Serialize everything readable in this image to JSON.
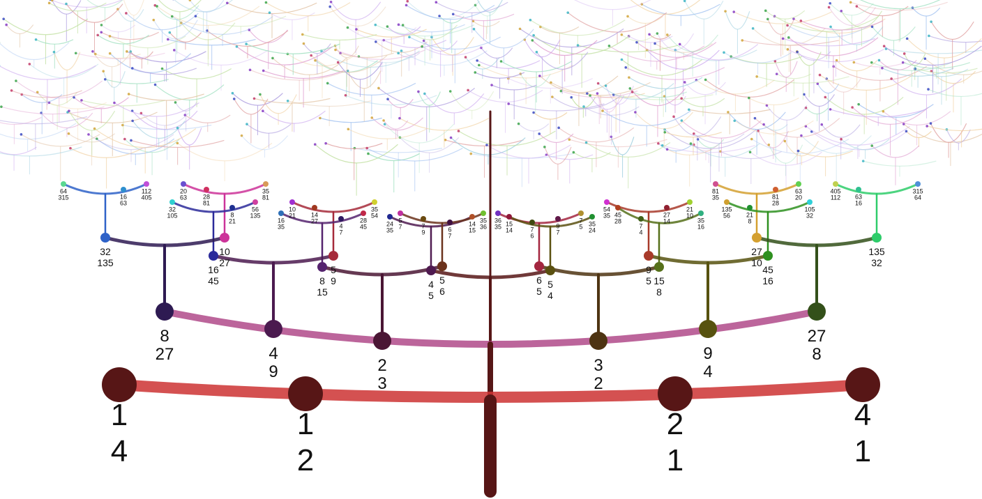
{
  "diagram": {
    "trunk_color": "#571616",
    "levels": [
      {
        "nodes": [
          {
            "num": "1",
            "den": "4",
            "color": "#571616"
          },
          {
            "num": "1",
            "den": "2",
            "color": "#571616"
          },
          {
            "num": "2",
            "den": "1",
            "color": "#571616"
          },
          {
            "num": "4",
            "den": "1",
            "color": "#571616"
          }
        ],
        "arc_color": "#cc3333"
      },
      {
        "nodes": [
          {
            "num": "8",
            "den": "27",
            "color": "#2e1a52"
          },
          {
            "num": "4",
            "den": "9",
            "color": "#4b1a4f"
          },
          {
            "num": "2",
            "den": "3",
            "color": "#4a1634"
          },
          {
            "num": "3",
            "den": "2",
            "color": "#4e3412"
          },
          {
            "num": "9",
            "den": "4",
            "color": "#57520f"
          },
          {
            "num": "27",
            "den": "8",
            "color": "#33501a"
          }
        ]
      },
      {
        "nodes": [
          {
            "num": "32",
            "den": "135",
            "color": "#2e62c8"
          },
          {
            "num": "10",
            "den": "27",
            "color": "#cc3399"
          },
          {
            "num": "16",
            "den": "45",
            "color": "#2b2a9a"
          },
          {
            "num": "5",
            "den": "9",
            "color": "#a62a3a"
          },
          {
            "num": "8",
            "den": "15",
            "color": "#55236e"
          },
          {
            "num": "4",
            "den": "5",
            "color": "#4f1a50"
          },
          {
            "num": "5",
            "den": "6",
            "color": "#6b321c"
          },
          {
            "num": "6",
            "den": "5",
            "color": "#a3263f"
          },
          {
            "num": "5",
            "den": "4",
            "color": "#5a5010"
          },
          {
            "num": "9",
            "den": "5",
            "color": "#a83a2a"
          },
          {
            "num": "15",
            "den": "8",
            "color": "#56701a"
          },
          {
            "num": "27",
            "den": "10",
            "color": "#d4a030"
          },
          {
            "num": "45",
            "den": "16",
            "color": "#2e9020"
          },
          {
            "num": "135",
            "den": "32",
            "color": "#2ecc6a"
          }
        ]
      },
      {
        "nodes": [
          {
            "num": "64",
            "den": "315",
            "color": "#5ad890"
          },
          {
            "num": "16",
            "den": "63",
            "color": "#2e8fcf"
          },
          {
            "num": "112",
            "den": "405",
            "color": "#c050d8"
          },
          {
            "num": "20",
            "den": "63",
            "color": "#6a50d0"
          },
          {
            "num": "28",
            "den": "81",
            "color": "#d03060"
          },
          {
            "num": "35",
            "den": "81",
            "color": "#d89a58"
          },
          {
            "num": "32",
            "den": "105",
            "color": "#30d0d0"
          },
          {
            "num": "8",
            "den": "21",
            "color": "#1e3090"
          },
          {
            "num": "56",
            "den": "135",
            "color": "#d040a0"
          },
          {
            "num": "10",
            "den": "21",
            "color": "#a030d0"
          },
          {
            "num": "14",
            "den": "27",
            "color": "#a03820"
          },
          {
            "num": "35",
            "den": "54",
            "color": "#d0d030"
          },
          {
            "num": "16",
            "den": "35",
            "color": "#2e70b8"
          },
          {
            "num": "4",
            "den": "7",
            "color": "#301860"
          },
          {
            "num": "28",
            "den": "45",
            "color": "#c02848"
          },
          {
            "num": "24",
            "den": "35",
            "color": "#202890"
          },
          {
            "num": "5",
            "den": "7",
            "color": "#c030a0"
          },
          {
            "num": "7",
            "den": "9",
            "color": "#6a4a10"
          },
          {
            "num": "6",
            "den": "7",
            "color": "#401040"
          },
          {
            "num": "14",
            "den": "15",
            "color": "#b05028"
          },
          {
            "num": "35",
            "den": "36",
            "color": "#70c030"
          },
          {
            "num": "36",
            "den": "35",
            "color": "#7030c0"
          },
          {
            "num": "15",
            "den": "14",
            "color": "#901838"
          },
          {
            "num": "7",
            "den": "6",
            "color": "#404810"
          },
          {
            "num": "9",
            "den": "7",
            "color": "#601848"
          },
          {
            "num": "7",
            "den": "5",
            "color": "#b09030"
          },
          {
            "num": "35",
            "den": "24",
            "color": "#209030"
          },
          {
            "num": "54",
            "den": "35",
            "color": "#d030d0"
          },
          {
            "num": "45",
            "den": "28",
            "color": "#b04020"
          },
          {
            "num": "7",
            "den": "4",
            "color": "#406018"
          },
          {
            "num": "27",
            "den": "14",
            "color": "#902030"
          },
          {
            "num": "21",
            "den": "10",
            "color": "#a0d030"
          },
          {
            "num": "35",
            "den": "16",
            "color": "#30b080"
          },
          {
            "num": "81",
            "den": "35",
            "color": "#d05090"
          },
          {
            "num": "135",
            "den": "56",
            "color": "#d0a030"
          },
          {
            "num": "21",
            "den": "8",
            "color": "#209030"
          },
          {
            "num": "81",
            "den": "28",
            "color": "#d06030"
          },
          {
            "num": "63",
            "den": "20",
            "color": "#60d050"
          },
          {
            "num": "105",
            "den": "32",
            "color": "#30d0d8"
          },
          {
            "num": "405",
            "den": "112",
            "color": "#c0d050"
          },
          {
            "num": "63",
            "den": "16",
            "color": "#30c090"
          },
          {
            "num": "315",
            "den": "64",
            "color": "#5090d8"
          }
        ]
      }
    ]
  }
}
